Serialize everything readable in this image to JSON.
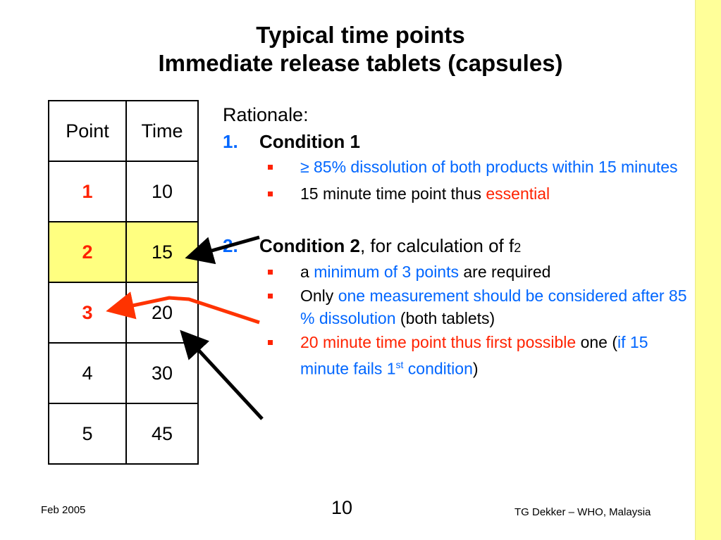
{
  "title": {
    "line1": "Typical time points",
    "line2": "Immediate release tablets (capsules)"
  },
  "table": {
    "headers": [
      "Point",
      "Time"
    ],
    "rows": [
      {
        "point": "1",
        "time": "10"
      },
      {
        "point": "2",
        "time": "15"
      },
      {
        "point": "3",
        "time": "20"
      },
      {
        "point": "4",
        "time": "30"
      },
      {
        "point": "5",
        "time": "45"
      }
    ]
  },
  "rationale": {
    "label": "Rationale:",
    "condition1": {
      "num": "1.",
      "head": "Condition 1",
      "bullet1": "≥ 85% dissolution of both products within 15 minutes",
      "bullet2_a": "15 minute time point thus ",
      "bullet2_b": "essential"
    },
    "condition2": {
      "num": "2.",
      "head": "Condition 2",
      "tail": ", for calculation of f",
      "sub": "2",
      "bullet1_a": "a ",
      "bullet1_b": "minimum of 3 points",
      "bullet1_c": " are required",
      "bullet2_a": "Only ",
      "bullet2_b": "one measurement should be considered after 85 % dissolution",
      "bullet2_c": " (both tablets)",
      "bullet3_a": "20 minute time point thus first possible",
      "bullet3_b": " one (",
      "bullet3_c": "if 15 minute fails 1",
      "bullet3_sup": "st",
      "bullet3_d": " condition",
      "bullet3_e": ")"
    }
  },
  "footer": {
    "date": "Feb 2005",
    "page": "10",
    "author": "TG Dekker – WHO, Malaysia"
  },
  "colors": {
    "accent_blue": "#0066ff",
    "accent_red": "#ff2200",
    "highlight": "#ffff80",
    "side_band": "#ffff99"
  }
}
